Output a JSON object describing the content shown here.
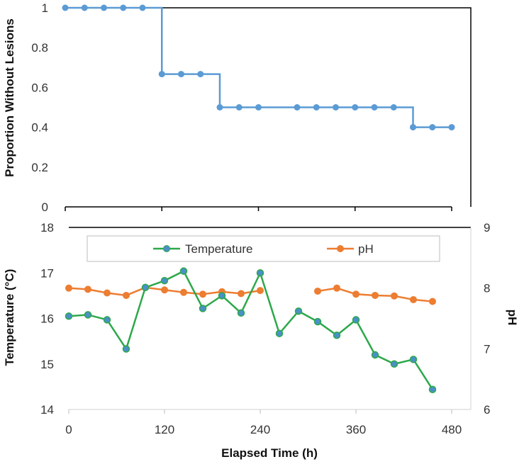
{
  "chart_data": [
    {
      "type": "line",
      "id": "top",
      "xlabel": "",
      "ylabel": "Proportion Without Lesions",
      "xlim": [
        0,
        480
      ],
      "ylim": [
        0,
        1
      ],
      "yticks": [
        "0",
        "0.2",
        "0.4",
        "0.6",
        "0.8",
        "1"
      ],
      "grid": false,
      "series": [
        {
          "step": true,
          "color": "#5B9BD5",
          "x": [
            0,
            24,
            48,
            72,
            96,
            120,
            144,
            168,
            192,
            216,
            240,
            288,
            312,
            336,
            360,
            384,
            408,
            432,
            456,
            480
          ],
          "y": [
            1,
            1,
            1,
            1,
            1,
            0.667,
            0.667,
            0.667,
            0.5,
            0.5,
            0.5,
            0.5,
            0.5,
            0.5,
            0.5,
            0.5,
            0.5,
            0.4,
            0.4,
            0.4
          ]
        }
      ]
    },
    {
      "type": "line",
      "id": "bottom",
      "xlabel": "Elapsed Time (h)",
      "ylabel": "Temperature (°C)",
      "y2label": "pH",
      "xlim": [
        0,
        480
      ],
      "xticks": [
        "0",
        "120",
        "240",
        "360",
        "480"
      ],
      "ylim": [
        14,
        18
      ],
      "yticks": [
        "14",
        "15",
        "16",
        "17",
        "18"
      ],
      "y2lim": [
        6,
        9
      ],
      "y2ticks": [
        "6",
        "7",
        "8",
        "9"
      ],
      "legend": "top",
      "grid": false,
      "series": [
        {
          "name": "Temperature",
          "axis": "left",
          "color": "#2DA84A",
          "marker_color": "#4A90C8",
          "x": [
            0,
            24,
            48,
            72,
            96,
            120,
            144,
            168,
            192,
            216,
            240,
            264,
            288,
            312,
            336,
            360,
            384,
            408,
            432,
            456
          ],
          "y": [
            16.05,
            16.08,
            15.97,
            15.33,
            16.68,
            16.83,
            17.04,
            16.22,
            16.5,
            16.12,
            17.0,
            15.67,
            16.16,
            15.93,
            15.63,
            15.97,
            15.2,
            15.0,
            15.1,
            14.44
          ]
        },
        {
          "name": "pH",
          "axis": "right",
          "color": "#ED7D31",
          "marker_color": "#ED7D31",
          "segments": [
            {
              "x": [
                0,
                24,
                48,
                72,
                96,
                120,
                144,
                168,
                192,
                216,
                240
              ],
              "y": [
                8.0,
                7.98,
                7.92,
                7.88,
                8.01,
                7.97,
                7.93,
                7.9,
                7.94,
                7.91,
                7.96
              ]
            },
            {
              "x": [
                312,
                336,
                360,
                384,
                408,
                432,
                456
              ],
              "y": [
                7.95,
                8.0,
                7.9,
                7.88,
                7.87,
                7.81,
                7.78
              ]
            }
          ]
        }
      ]
    }
  ]
}
